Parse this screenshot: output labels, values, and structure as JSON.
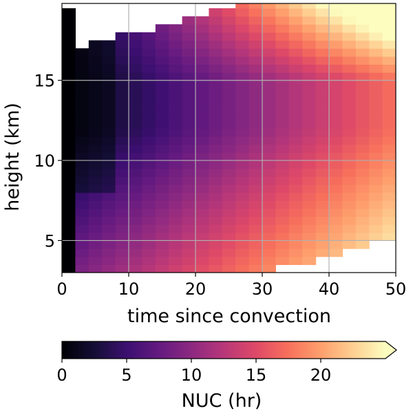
{
  "chart_data": {
    "type": "heatmap",
    "xlabel": "time since convection",
    "ylabel": "height (km)",
    "xlim": [
      0,
      50
    ],
    "ylim": [
      3,
      19.8
    ],
    "x_ticks": [
      0,
      10,
      20,
      30,
      40,
      50
    ],
    "y_ticks": [
      5,
      10,
      15
    ],
    "grid": true,
    "colormap": "magma",
    "value_range": [
      0,
      25
    ],
    "colorbar": {
      "label": "NUC (hr)",
      "ticks": [
        0,
        5,
        10,
        15,
        20
      ],
      "extend": "max",
      "orientation": "horizontal",
      "placement": "bottom"
    },
    "x_bin_width": 2,
    "y_bin_width": 0.5,
    "description_fields": {
      "top_boundary_km": [
        19.5,
        17.2,
        17.4,
        17.6,
        17.8,
        18.0,
        18.2,
        18.5,
        18.7,
        19.0,
        19.2,
        19.4,
        19.6,
        19.8,
        19.8,
        19.8,
        19.8,
        19.8,
        19.8,
        19.8,
        19.8,
        19.8,
        19.8,
        19.8,
        19.8
      ],
      "bottom_boundary_km": [
        3.0,
        3.0,
        3.0,
        3.0,
        3.0,
        3.0,
        3.0,
        3.0,
        3.0,
        3.0,
        3.0,
        3.0,
        3.0,
        3.0,
        3.0,
        3.0,
        3.3,
        3.5,
        3.6,
        3.9,
        4.2,
        4.4,
        4.5,
        5.0,
        5.2
      ]
    }
  }
}
